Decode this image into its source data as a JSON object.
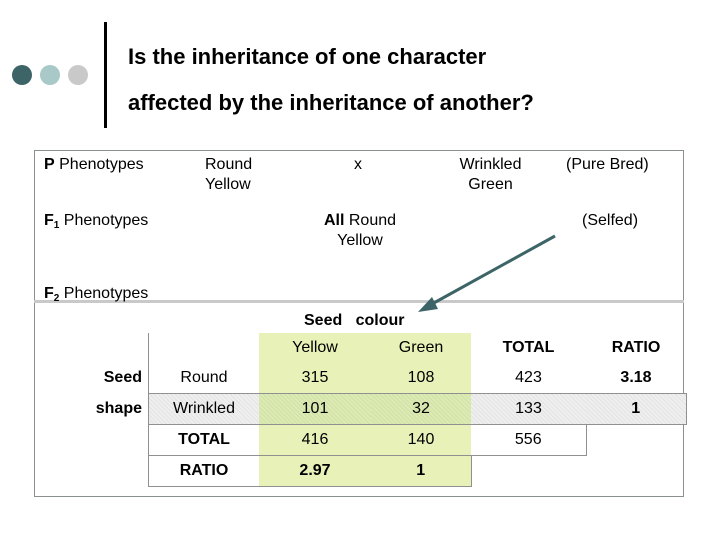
{
  "title": {
    "line1": "Is the inheritance of one character",
    "line2": "affected by the inheritance of another?"
  },
  "crosses": {
    "p_label": "P",
    "p_phenotypes": "Phenotypes",
    "p_parent1_line1": "Round",
    "p_parent1_line2": "Yellow",
    "p_cross": "x",
    "p_parent2_line1": "Wrinkled",
    "p_parent2_line2": "Green",
    "p_note": "(Pure Bred)",
    "f1_label": "F",
    "f1_sub": "1",
    "f1_phenotypes": "Phenotypes",
    "f1_all": "All",
    "f1_result_line1": "Round",
    "f1_result_line2": "Yellow",
    "f1_note": "(Selfed)",
    "f2_label": "F",
    "f2_sub": "2",
    "f2_phenotypes": "Phenotypes"
  },
  "table": {
    "col_group": "Seed   colour",
    "row_group_1": "Seed",
    "row_group_2": "shape",
    "headers": [
      "Yellow",
      "Green",
      "TOTAL",
      "RATIO"
    ],
    "rows": [
      {
        "label": "Round",
        "yellow": "315",
        "green": "108",
        "total": "423",
        "ratio": "3.18"
      },
      {
        "label": "Wrinkled",
        "yellow": "101",
        "green": "32",
        "total": "133",
        "ratio": "1"
      }
    ],
    "total_row": {
      "label": "TOTAL",
      "yellow": "416",
      "green": "140",
      "total": "556"
    },
    "ratio_row": {
      "label": "RATIO",
      "yellow": "2.97",
      "green": "1"
    }
  },
  "colors": {
    "dot_dark": "#3d6466",
    "dot_mid": "#a9c8c8",
    "dot_light": "#c9c9c9",
    "arrow": "#3d6466",
    "cell_green": "#e8f2b8"
  }
}
